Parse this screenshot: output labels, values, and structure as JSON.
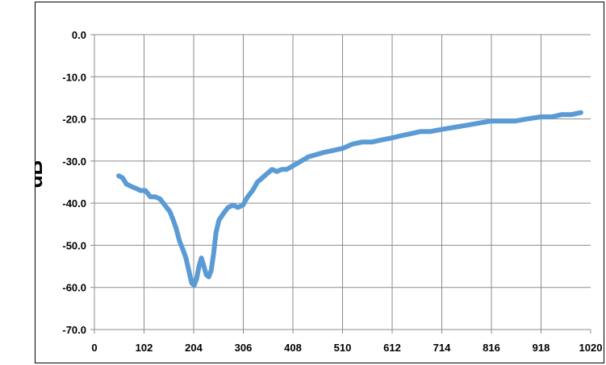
{
  "chart_data": {
    "type": "line",
    "title": "",
    "xlabel": "",
    "ylabel": "dB",
    "xlim": [
      0,
      1020
    ],
    "ylim": [
      -70,
      0
    ],
    "x_ticks": [
      "0",
      "102",
      "204",
      "306",
      "408",
      "510",
      "612",
      "714",
      "816",
      "918",
      "1020"
    ],
    "y_ticks": [
      "0.0",
      "-10.0",
      "-20.0",
      "-30.0",
      "-40.0",
      "-50.0",
      "-60.0",
      "-70.0"
    ],
    "grid": true,
    "legend": "none",
    "line_color": "#5b9bd5",
    "series": [
      {
        "x": [
          50,
          58,
          66,
          75,
          85,
          95,
          105,
          115,
          125,
          135,
          145,
          155,
          162,
          168,
          175,
          182,
          188,
          194,
          200,
          205,
          210,
          215,
          220,
          225,
          230,
          235,
          240,
          245,
          250,
          256,
          262,
          268,
          275,
          285,
          295,
          305,
          315,
          325,
          335,
          345,
          355,
          365,
          375,
          385,
          395,
          410,
          425,
          440,
          455,
          470,
          490,
          510,
          530,
          550,
          570,
          590,
          612,
          630,
          650,
          670,
          690,
          714,
          740,
          765,
          790,
          816,
          840,
          865,
          890,
          918,
          940,
          960,
          980,
          1000
        ],
        "values": [
          -33.5,
          -34,
          -35.5,
          -36,
          -36.5,
          -37,
          -37,
          -38.5,
          -38.5,
          -39,
          -40.5,
          -42,
          -44,
          -46,
          -49,
          -51,
          -53,
          -56,
          -59,
          -59.5,
          -58,
          -55,
          -53,
          -55,
          -57,
          -57.5,
          -56,
          -52,
          -47,
          -44,
          -43,
          -42,
          -41,
          -40.5,
          -41,
          -40.5,
          -38.5,
          -37,
          -35,
          -34,
          -33,
          -32,
          -32.5,
          -32,
          -32,
          -31,
          -30,
          -29,
          -28.5,
          -28,
          -27.5,
          -27,
          -26,
          -25.5,
          -25.5,
          -25,
          -24.5,
          -24,
          -23.5,
          -23,
          -23,
          -22.5,
          -22,
          -21.5,
          -21,
          -20.5,
          -20.5,
          -20.5,
          -20,
          -19.5,
          -19.5,
          -19,
          -19,
          -18.5
        ]
      }
    ]
  }
}
